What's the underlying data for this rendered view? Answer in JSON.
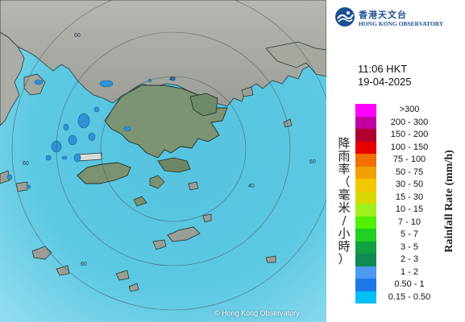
{
  "brand": {
    "name_cn": "香港天文台",
    "name_en": "HONG KONG OBSERVATORY",
    "logo_color": "#1d4f91"
  },
  "timestamp": {
    "time": "11:06 HKT",
    "date": "19-04-2025"
  },
  "labels": {
    "vertical_cn": "降雨率（毫米/小時）",
    "vertical_en": "Rainfall Rate (mm/h)"
  },
  "legend": [
    {
      "label": ">300",
      "color": "#ff00ff"
    },
    {
      "label": "200 - 300",
      "color": "#c000a0"
    },
    {
      "label": "150 - 200",
      "color": "#b0002f"
    },
    {
      "label": "100 - 150",
      "color": "#e60000"
    },
    {
      "label": "75 - 100",
      "color": "#f07000"
    },
    {
      "label": "50 - 75",
      "color": "#f0a000"
    },
    {
      "label": "30 - 50",
      "color": "#f3c800"
    },
    {
      "label": "15 - 30",
      "color": "#d8d800"
    },
    {
      "label": "10 - 15",
      "color": "#a0f020"
    },
    {
      "label": "7 - 10",
      "color": "#50f000"
    },
    {
      "label": "5 - 7",
      "color": "#20d020"
    },
    {
      "label": "3 - 5",
      "color": "#10a040"
    },
    {
      "label": "2 - 3",
      "color": "#108a50"
    },
    {
      "label": "1 - 2",
      "color": "#4e9af0"
    },
    {
      "label": "0.50 - 1",
      "color": "#1e78e6"
    },
    {
      "label": "0.15 - 0.50",
      "color": "#00c0f8"
    }
  ],
  "range_ring_labels": [
    "40",
    "60",
    "60",
    "40",
    "60",
    "60"
  ],
  "copyright": "© Hong Kong Observatory",
  "colors": {
    "sea_light": "#7ad8ec",
    "sea_dark": "#3fb6d9",
    "land": "#a8aca4",
    "vegetation": "#6f8a66",
    "radar_echo": "#2f93d6"
  }
}
